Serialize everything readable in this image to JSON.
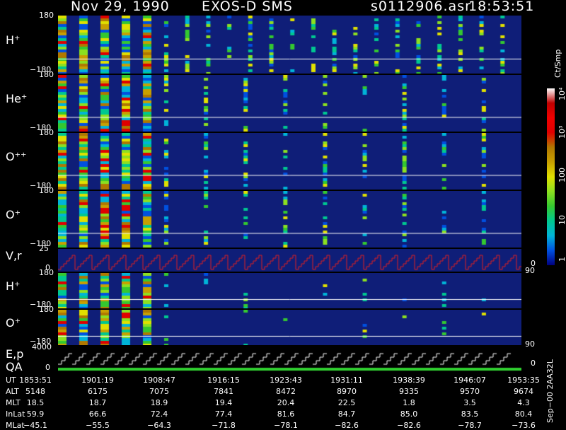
{
  "header": {
    "date": "Nov 29, 1990",
    "instrument": "EXOS-D SMS",
    "file": "s0112906.asr",
    "time": "18:53:51"
  },
  "colorbar": {
    "title": "Ct/Smp",
    "ticks": [
      "1",
      "10",
      "100",
      "10³",
      "10⁴"
    ],
    "colors": [
      "#000080",
      "#0050e0",
      "#00b4d8",
      "#00c890",
      "#34c830",
      "#8ce020",
      "#e0e000",
      "#c8a000",
      "#b07800",
      "#e00000",
      "#f00000",
      "#c00000",
      "#ffffff"
    ]
  },
  "panels": [
    {
      "id": "h-plus-1",
      "label": "H⁺",
      "ymax": "180",
      "ymin": "−180"
    },
    {
      "id": "he-plus",
      "label": "He⁺",
      "ymax": "180",
      "ymin": "−180"
    },
    {
      "id": "o-plus-plus",
      "label": "O⁺⁺",
      "ymax": "180",
      "ymin": "−180"
    },
    {
      "id": "o-plus-1",
      "label": "O⁺",
      "ymax": "180",
      "ymin": "−180"
    },
    {
      "id": "v-r",
      "label": "V,r",
      "ymax": "25",
      "ymin": "0",
      "right": "90",
      "right_min": "0"
    },
    {
      "id": "h-plus-2",
      "label": "H⁺",
      "ymax": "180",
      "ymin": "−180"
    },
    {
      "id": "o-plus-2",
      "label": "O⁺",
      "ymax": "180",
      "ymin": "−180",
      "right": "90"
    },
    {
      "id": "e-p",
      "label": "E,p",
      "label2": "QA",
      "ymax": "4000",
      "ymin": "0",
      "right_min": "0"
    }
  ],
  "chart_data": {
    "type": "heatmap",
    "title": "Nov 29, 1990   EXOS-D SMS",
    "columns": [
      {
        "UT": "1853:51",
        "ALT": "5148",
        "MLT": "18.5",
        "InLat": "59.9",
        "MLat": "−45.1"
      },
      {
        "UT": "1901:19",
        "ALT": "6175",
        "MLT": "18.7",
        "InLat": "66.6",
        "MLat": "−55.5"
      },
      {
        "UT": "1908:47",
        "ALT": "7075",
        "MLT": "18.9",
        "InLat": "72.4",
        "MLat": "−64.3"
      },
      {
        "UT": "1916:15",
        "ALT": "7841",
        "MLT": "19.4",
        "InLat": "77.4",
        "MLat": "−71.8"
      },
      {
        "UT": "1923:43",
        "ALT": "8472",
        "MLT": "20.4",
        "InLat": "81.6",
        "MLat": "−78.1"
      },
      {
        "UT": "1931:11",
        "ALT": "8970",
        "MLT": "22.5",
        "InLat": "84.7",
        "MLat": "−82.6"
      },
      {
        "UT": "1938:39",
        "ALT": "9335",
        "MLT": "1.8",
        "InLat": "85.0",
        "MLat": "−82.6"
      },
      {
        "UT": "1946:07",
        "ALT": "9570",
        "MLT": "3.5",
        "InLat": "83.5",
        "MLat": "−78.7"
      },
      {
        "UT": "1953:35",
        "ALT": "9674",
        "MLT": "4.3",
        "InLat": "80.4",
        "MLat": "−73.6"
      }
    ],
    "row_labels": [
      "UT",
      "ALT",
      "MLT",
      "InLat",
      "MLat"
    ],
    "scale": "log",
    "range": [
      1,
      10000
    ],
    "units": "Ct/Smp"
  },
  "footer": "Sep−00  2AA32L"
}
